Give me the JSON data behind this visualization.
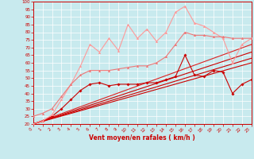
{
  "xlabel": "Vent moyen/en rafales ( km/h )",
  "xlim": [
    0,
    23
  ],
  "ylim": [
    20,
    100
  ],
  "yticks": [
    20,
    25,
    30,
    35,
    40,
    45,
    50,
    55,
    60,
    65,
    70,
    75,
    80,
    85,
    90,
    95,
    100
  ],
  "xticks": [
    0,
    1,
    2,
    3,
    4,
    5,
    6,
    7,
    8,
    9,
    10,
    11,
    12,
    13,
    14,
    15,
    16,
    17,
    18,
    19,
    20,
    21,
    22,
    23
  ],
  "background_color": "#c8eaee",
  "grid_color": "#ffffff",
  "series": [
    {
      "x": [
        0,
        23
      ],
      "y": [
        20,
        60
      ],
      "color": "#cc0000",
      "linewidth": 0.8,
      "marker": null
    },
    {
      "x": [
        0,
        23
      ],
      "y": [
        20,
        63
      ],
      "color": "#cc0000",
      "linewidth": 0.8,
      "marker": null
    },
    {
      "x": [
        0,
        23
      ],
      "y": [
        20,
        67
      ],
      "color": "#cc0000",
      "linewidth": 0.8,
      "marker": null
    },
    {
      "x": [
        0,
        23
      ],
      "y": [
        20,
        72
      ],
      "color": "#dd2222",
      "linewidth": 0.8,
      "marker": null
    },
    {
      "x": [
        0,
        1,
        2,
        3,
        4,
        5,
        6,
        7,
        8,
        9,
        10,
        11,
        12,
        13,
        14,
        15,
        16,
        17,
        18,
        19,
        20,
        21,
        22,
        23
      ],
      "y": [
        20,
        22,
        25,
        30,
        36,
        42,
        46,
        47,
        45,
        46,
        46,
        46,
        47,
        47,
        49,
        51,
        65,
        52,
        51,
        55,
        54,
        40,
        46,
        49
      ],
      "color": "#cc0000",
      "linewidth": 0.8,
      "marker": "D",
      "markersize": 1.8
    },
    {
      "x": [
        0,
        1,
        2,
        3,
        4,
        5,
        6,
        7,
        8,
        9,
        10,
        11,
        12,
        13,
        14,
        15,
        16,
        17,
        18,
        19,
        20,
        21,
        22,
        23
      ],
      "y": [
        20,
        22,
        26,
        36,
        46,
        58,
        72,
        67,
        76,
        68,
        85,
        76,
        82,
        74,
        80,
        93,
        97,
        86,
        84,
        80,
        76,
        60,
        72,
        76
      ],
      "color": "#ff9999",
      "linewidth": 0.8,
      "marker": "^",
      "markersize": 2.0
    },
    {
      "x": [
        0,
        1,
        2,
        3,
        4,
        5,
        6,
        7,
        8,
        9,
        10,
        11,
        12,
        13,
        14,
        15,
        16,
        17,
        18,
        19,
        20,
        21,
        22,
        23
      ],
      "y": [
        25,
        27,
        30,
        38,
        46,
        52,
        55,
        55,
        55,
        56,
        57,
        58,
        58,
        60,
        64,
        72,
        80,
        78,
        78,
        77,
        77,
        76,
        76,
        76
      ],
      "color": "#ee7777",
      "linewidth": 0.8,
      "marker": "^",
      "markersize": 2.0
    }
  ]
}
